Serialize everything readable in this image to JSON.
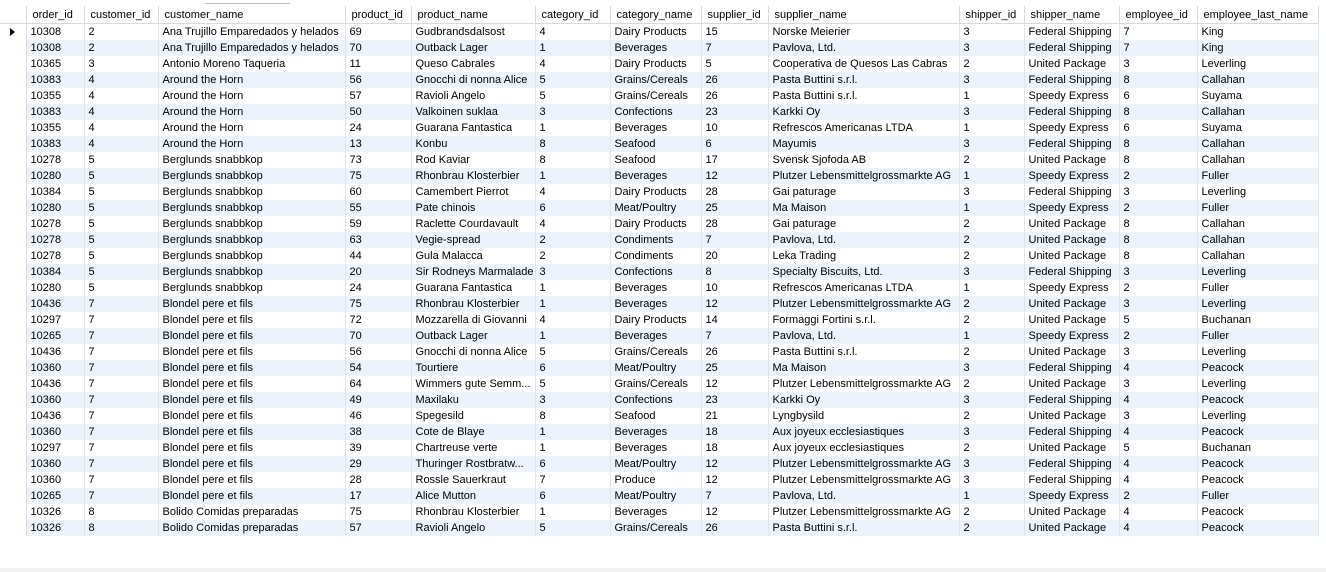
{
  "columns": [
    "order_id",
    "customer_id",
    "customer_name",
    "product_id",
    "product_name",
    "category_id",
    "category_name",
    "supplier_id",
    "supplier_name",
    "shipper_id",
    "shipper_name",
    "employee_id",
    "employee_last_name"
  ],
  "current_row_icon": "row-pointer-icon",
  "rows": [
    [
      "10308",
      "2",
      "Ana Trujillo Emparedados y helados",
      "69",
      "Gudbrandsdalsost",
      "4",
      "Dairy Products",
      "15",
      "Norske Meierier",
      "3",
      "Federal Shipping",
      "7",
      "King"
    ],
    [
      "10308",
      "2",
      "Ana Trujillo Emparedados y helados",
      "70",
      "Outback Lager",
      "1",
      "Beverages",
      "7",
      "Pavlova, Ltd.",
      "3",
      "Federal Shipping",
      "7",
      "King"
    ],
    [
      "10365",
      "3",
      "Antonio Moreno Taqueria",
      "11",
      "Queso Cabrales",
      "4",
      "Dairy Products",
      "5",
      "Cooperativa de Quesos Las Cabras",
      "2",
      "United Package",
      "3",
      "Leverling"
    ],
    [
      "10383",
      "4",
      "Around the Horn",
      "56",
      "Gnocchi di nonna Alice",
      "5",
      "Grains/Cereals",
      "26",
      "Pasta Buttini s.r.l.",
      "3",
      "Federal Shipping",
      "8",
      "Callahan"
    ],
    [
      "10355",
      "4",
      "Around the Horn",
      "57",
      "Ravioli Angelo",
      "5",
      "Grains/Cereals",
      "26",
      "Pasta Buttini s.r.l.",
      "1",
      "Speedy Express",
      "6",
      "Suyama"
    ],
    [
      "10383",
      "4",
      "Around the Horn",
      "50",
      "Valkoinen suklaa",
      "3",
      "Confections",
      "23",
      "Karkki Oy",
      "3",
      "Federal Shipping",
      "8",
      "Callahan"
    ],
    [
      "10355",
      "4",
      "Around the Horn",
      "24",
      "Guarana Fantastica",
      "1",
      "Beverages",
      "10",
      "Refrescos Americanas LTDA",
      "1",
      "Speedy Express",
      "6",
      "Suyama"
    ],
    [
      "10383",
      "4",
      "Around the Horn",
      "13",
      "Konbu",
      "8",
      "Seafood",
      "6",
      "Mayumis",
      "3",
      "Federal Shipping",
      "8",
      "Callahan"
    ],
    [
      "10278",
      "5",
      "Berglunds snabbkop",
      "73",
      "Rod Kaviar",
      "8",
      "Seafood",
      "17",
      "Svensk Sjofoda AB",
      "2",
      "United Package",
      "8",
      "Callahan"
    ],
    [
      "10280",
      "5",
      "Berglunds snabbkop",
      "75",
      "Rhonbrau Klosterbier",
      "1",
      "Beverages",
      "12",
      "Plutzer Lebensmittelgrossmarkte AG",
      "1",
      "Speedy Express",
      "2",
      "Fuller"
    ],
    [
      "10384",
      "5",
      "Berglunds snabbkop",
      "60",
      "Camembert Pierrot",
      "4",
      "Dairy Products",
      "28",
      "Gai paturage",
      "3",
      "Federal Shipping",
      "3",
      "Leverling"
    ],
    [
      "10280",
      "5",
      "Berglunds snabbkop",
      "55",
      "Pate chinois",
      "6",
      "Meat/Poultry",
      "25",
      "Ma Maison",
      "1",
      "Speedy Express",
      "2",
      "Fuller"
    ],
    [
      "10278",
      "5",
      "Berglunds snabbkop",
      "59",
      "Raclette Courdavault",
      "4",
      "Dairy Products",
      "28",
      "Gai paturage",
      "2",
      "United Package",
      "8",
      "Callahan"
    ],
    [
      "10278",
      "5",
      "Berglunds snabbkop",
      "63",
      "Vegie-spread",
      "2",
      "Condiments",
      "7",
      "Pavlova, Ltd.",
      "2",
      "United Package",
      "8",
      "Callahan"
    ],
    [
      "10278",
      "5",
      "Berglunds snabbkop",
      "44",
      "Gula Malacca",
      "2",
      "Condiments",
      "20",
      "Leka Trading",
      "2",
      "United Package",
      "8",
      "Callahan"
    ],
    [
      "10384",
      "5",
      "Berglunds snabbkop",
      "20",
      "Sir Rodneys Marmalade",
      "3",
      "Confections",
      "8",
      "Specialty Biscuits, Ltd.",
      "3",
      "Federal Shipping",
      "3",
      "Leverling"
    ],
    [
      "10280",
      "5",
      "Berglunds snabbkop",
      "24",
      "Guarana Fantastica",
      "1",
      "Beverages",
      "10",
      "Refrescos Americanas LTDA",
      "1",
      "Speedy Express",
      "2",
      "Fuller"
    ],
    [
      "10436",
      "7",
      "Blondel pere et fils",
      "75",
      "Rhonbrau Klosterbier",
      "1",
      "Beverages",
      "12",
      "Plutzer Lebensmittelgrossmarkte AG",
      "2",
      "United Package",
      "3",
      "Leverling"
    ],
    [
      "10297",
      "7",
      "Blondel pere et fils",
      "72",
      "Mozzarella di Giovanni",
      "4",
      "Dairy Products",
      "14",
      "Formaggi Fortini s.r.l.",
      "2",
      "United Package",
      "5",
      "Buchanan"
    ],
    [
      "10265",
      "7",
      "Blondel pere et fils",
      "70",
      "Outback Lager",
      "1",
      "Beverages",
      "7",
      "Pavlova, Ltd.",
      "1",
      "Speedy Express",
      "2",
      "Fuller"
    ],
    [
      "10436",
      "7",
      "Blondel pere et fils",
      "56",
      "Gnocchi di nonna Alice",
      "5",
      "Grains/Cereals",
      "26",
      "Pasta Buttini s.r.l.",
      "2",
      "United Package",
      "3",
      "Leverling"
    ],
    [
      "10360",
      "7",
      "Blondel pere et fils",
      "54",
      "Tourtiere",
      "6",
      "Meat/Poultry",
      "25",
      "Ma Maison",
      "3",
      "Federal Shipping",
      "4",
      "Peacock"
    ],
    [
      "10436",
      "7",
      "Blondel pere et fils",
      "64",
      "Wimmers gute Semm...",
      "5",
      "Grains/Cereals",
      "12",
      "Plutzer Lebensmittelgrossmarkte AG",
      "2",
      "United Package",
      "3",
      "Leverling"
    ],
    [
      "10360",
      "7",
      "Blondel pere et fils",
      "49",
      "Maxilaku",
      "3",
      "Confections",
      "23",
      "Karkki Oy",
      "3",
      "Federal Shipping",
      "4",
      "Peacock"
    ],
    [
      "10436",
      "7",
      "Blondel pere et fils",
      "46",
      "Spegesild",
      "8",
      "Seafood",
      "21",
      "Lyngbysild",
      "2",
      "United Package",
      "3",
      "Leverling"
    ],
    [
      "10360",
      "7",
      "Blondel pere et fils",
      "38",
      "Cote de Blaye",
      "1",
      "Beverages",
      "18",
      "Aux joyeux ecclesiastiques",
      "3",
      "Federal Shipping",
      "4",
      "Peacock"
    ],
    [
      "10297",
      "7",
      "Blondel pere et fils",
      "39",
      "Chartreuse verte",
      "1",
      "Beverages",
      "18",
      "Aux joyeux ecclesiastiques",
      "2",
      "United Package",
      "5",
      "Buchanan"
    ],
    [
      "10360",
      "7",
      "Blondel pere et fils",
      "29",
      "Thuringer Rostbratw...",
      "6",
      "Meat/Poultry",
      "12",
      "Plutzer Lebensmittelgrossmarkte AG",
      "3",
      "Federal Shipping",
      "4",
      "Peacock"
    ],
    [
      "10360",
      "7",
      "Blondel pere et fils",
      "28",
      "Rossle Sauerkraut",
      "7",
      "Produce",
      "12",
      "Plutzer Lebensmittelgrossmarkte AG",
      "3",
      "Federal Shipping",
      "4",
      "Peacock"
    ],
    [
      "10265",
      "7",
      "Blondel pere et fils",
      "17",
      "Alice Mutton",
      "6",
      "Meat/Poultry",
      "7",
      "Pavlova, Ltd.",
      "1",
      "Speedy Express",
      "2",
      "Fuller"
    ],
    [
      "10326",
      "8",
      "Bolido Comidas preparadas",
      "75",
      "Rhonbrau Klosterbier",
      "1",
      "Beverages",
      "12",
      "Plutzer Lebensmittelgrossmarkte AG",
      "2",
      "United Package",
      "4",
      "Peacock"
    ],
    [
      "10326",
      "8",
      "Bolido Comidas preparadas",
      "57",
      "Ravioli Angelo",
      "5",
      "Grains/Cereals",
      "26",
      "Pasta Buttini s.r.l.",
      "2",
      "United Package",
      "4",
      "Peacock"
    ]
  ],
  "colors": {
    "header_bg": "#ffffff",
    "alt_row_bg": "#eef2fb",
    "grid_line": "#d9d9d9"
  }
}
